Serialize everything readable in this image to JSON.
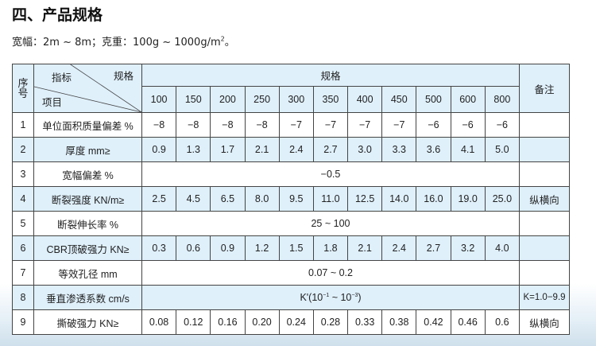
{
  "title": "四、产品规格",
  "subtitle": {
    "text": "宽幅：2m ~ 8m；克重：100g ~ 1000g/m",
    "sup": "2",
    "end": "。"
  },
  "table": {
    "seq_header": "序号",
    "indicator_label": "指标",
    "spec_label": "规格",
    "item_label": "项目",
    "spec_group": "规格",
    "remark_header": "备注",
    "specs": [
      "100",
      "150",
      "200",
      "250",
      "300",
      "350",
      "400",
      "450",
      "500",
      "600",
      "800"
    ],
    "rows": [
      {
        "no": "1",
        "item": "单位面积质量偏差 %",
        "values": [
          "−8",
          "−8",
          "−8",
          "−8",
          "−7",
          "−7",
          "−7",
          "−7",
          "−6",
          "−6",
          "−6"
        ],
        "remark": ""
      },
      {
        "no": "2",
        "item": "厚度 mm≥",
        "values": [
          "0.9",
          "1.3",
          "1.7",
          "2.1",
          "2.4",
          "2.7",
          "3.0",
          "3.3",
          "3.6",
          "4.1",
          "5.0"
        ],
        "remark": ""
      },
      {
        "no": "3",
        "item": "宽幅偏差 %",
        "merged": "−0.5",
        "remark": ""
      },
      {
        "no": "4",
        "item": "断裂强度 KN/m≥",
        "values": [
          "2.5",
          "4.5",
          "6.5",
          "8.0",
          "9.5",
          "11.0",
          "12.5",
          "14.0",
          "16.0",
          "19.0",
          "25.0"
        ],
        "remark": "纵横向"
      },
      {
        "no": "5",
        "item": "断裂伸长率 %",
        "merged": "25 ~ 100",
        "remark": ""
      },
      {
        "no": "6",
        "item": "CBR顶破强力 KN≥",
        "values": [
          "0.3",
          "0.6",
          "0.9",
          "1.2",
          "1.5",
          "1.8",
          "2.1",
          "2.4",
          "2.7",
          "3.2",
          "4.0"
        ],
        "remark": ""
      },
      {
        "no": "7",
        "item": "等效孔径 mm",
        "merged": "0.07 ~ 0.2",
        "remark": ""
      },
      {
        "no": "8",
        "item": "垂直渗透系数 cm/s",
        "merged_parts": [
          "K'(10",
          "−1",
          " ~ 10",
          "−3",
          ")"
        ],
        "remark": "K=1.0−9.9"
      },
      {
        "no": "9",
        "item": "撕破强力 KN≥",
        "values": [
          "0.08",
          "0.12",
          "0.16",
          "0.20",
          "0.24",
          "0.28",
          "0.33",
          "0.38",
          "0.42",
          "0.46",
          "0.6"
        ],
        "remark": "纵横向"
      }
    ]
  }
}
